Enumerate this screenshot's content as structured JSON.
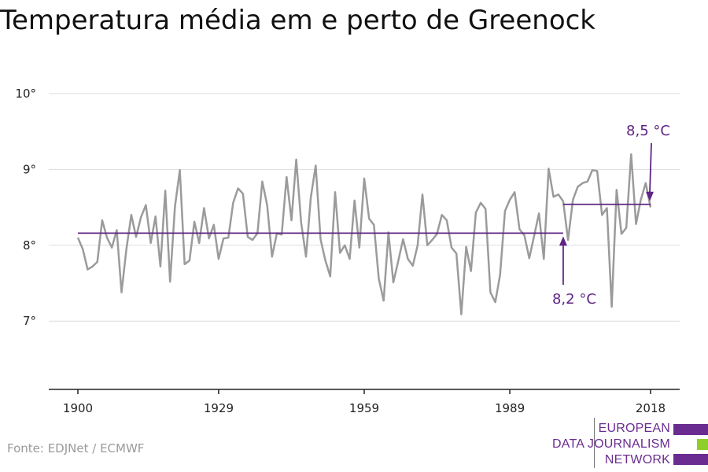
{
  "title": "Temperatura média em e perto de Greenock",
  "source": "Fonte: EDJNet / ECMWF",
  "colors": {
    "series": "#9b9b9b",
    "mean": "#5e2584",
    "accent_green": "#8fcf2a",
    "grid": "#dddddd"
  },
  "logo": {
    "lines": [
      "EUROPEAN",
      "DATA JOURNALISM",
      "NETWORK"
    ],
    "bar_colors": [
      "#6a2c91",
      "#8fcf2a",
      "#6a2c91"
    ]
  },
  "chart_data": {
    "type": "line",
    "title": "Temperatura média em e perto de Greenock",
    "xlabel": "",
    "ylabel": "",
    "xlim": [
      1894,
      2024
    ],
    "ylim": [
      6.1,
      10.3
    ],
    "x_ticks": [
      1900,
      1929,
      1959,
      1989,
      2018
    ],
    "x_tick_labels": [
      "1900",
      "1929",
      "1959",
      "1989",
      "2018"
    ],
    "y_ticks": [
      7,
      8,
      9,
      10
    ],
    "y_tick_labels": [
      "7°",
      "8°",
      "9°",
      "10°"
    ],
    "grid": true,
    "series": [
      {
        "start_year": 1900,
        "values": [
          8.1,
          7.95,
          7.68,
          7.72,
          7.78,
          8.33,
          8.1,
          7.97,
          8.2,
          7.38,
          7.95,
          8.4,
          8.11,
          8.37,
          8.53,
          8.03,
          8.38,
          7.72,
          8.72,
          7.52,
          8.51,
          8.99,
          7.75,
          7.8,
          8.31,
          8.03,
          8.49,
          8.09,
          8.27,
          7.82,
          8.09,
          8.1,
          8.56,
          8.75,
          8.68,
          8.11,
          8.07,
          8.16,
          8.84,
          8.53,
          7.85,
          8.16,
          8.14,
          8.9,
          8.33,
          9.13,
          8.3,
          7.85,
          8.63,
          9.05,
          8.08,
          7.8,
          7.59,
          8.7,
          7.9,
          8.0,
          7.82,
          8.59,
          7.97,
          8.88,
          8.35,
          8.27,
          7.56,
          7.27,
          8.17,
          7.51,
          7.79,
          8.08,
          7.82,
          7.73,
          8.0,
          8.67,
          8.0,
          8.07,
          8.15,
          8.4,
          8.33,
          7.97,
          7.89,
          7.09,
          7.98,
          7.66,
          8.43,
          8.56,
          8.48,
          7.38,
          7.25,
          7.61,
          8.45,
          8.6,
          8.7,
          8.21,
          8.13,
          7.83,
          8.12,
          8.42,
          7.82,
          9.01,
          8.64,
          8.67,
          8.58,
          8.07,
          8.6,
          8.77,
          8.82,
          8.84,
          8.99,
          8.98,
          8.4,
          8.49,
          7.19,
          8.73,
          8.15,
          8.23,
          9.2,
          8.28,
          8.6,
          8.82,
          8.5
        ]
      }
    ],
    "reference_lines": [
      {
        "x_start": 1900,
        "x_end": 2000,
        "y": 8.16,
        "label": "8,2 °C"
      },
      {
        "x_start": 2000,
        "x_end": 2018,
        "y": 8.54,
        "label": "8,5 °C"
      }
    ]
  }
}
